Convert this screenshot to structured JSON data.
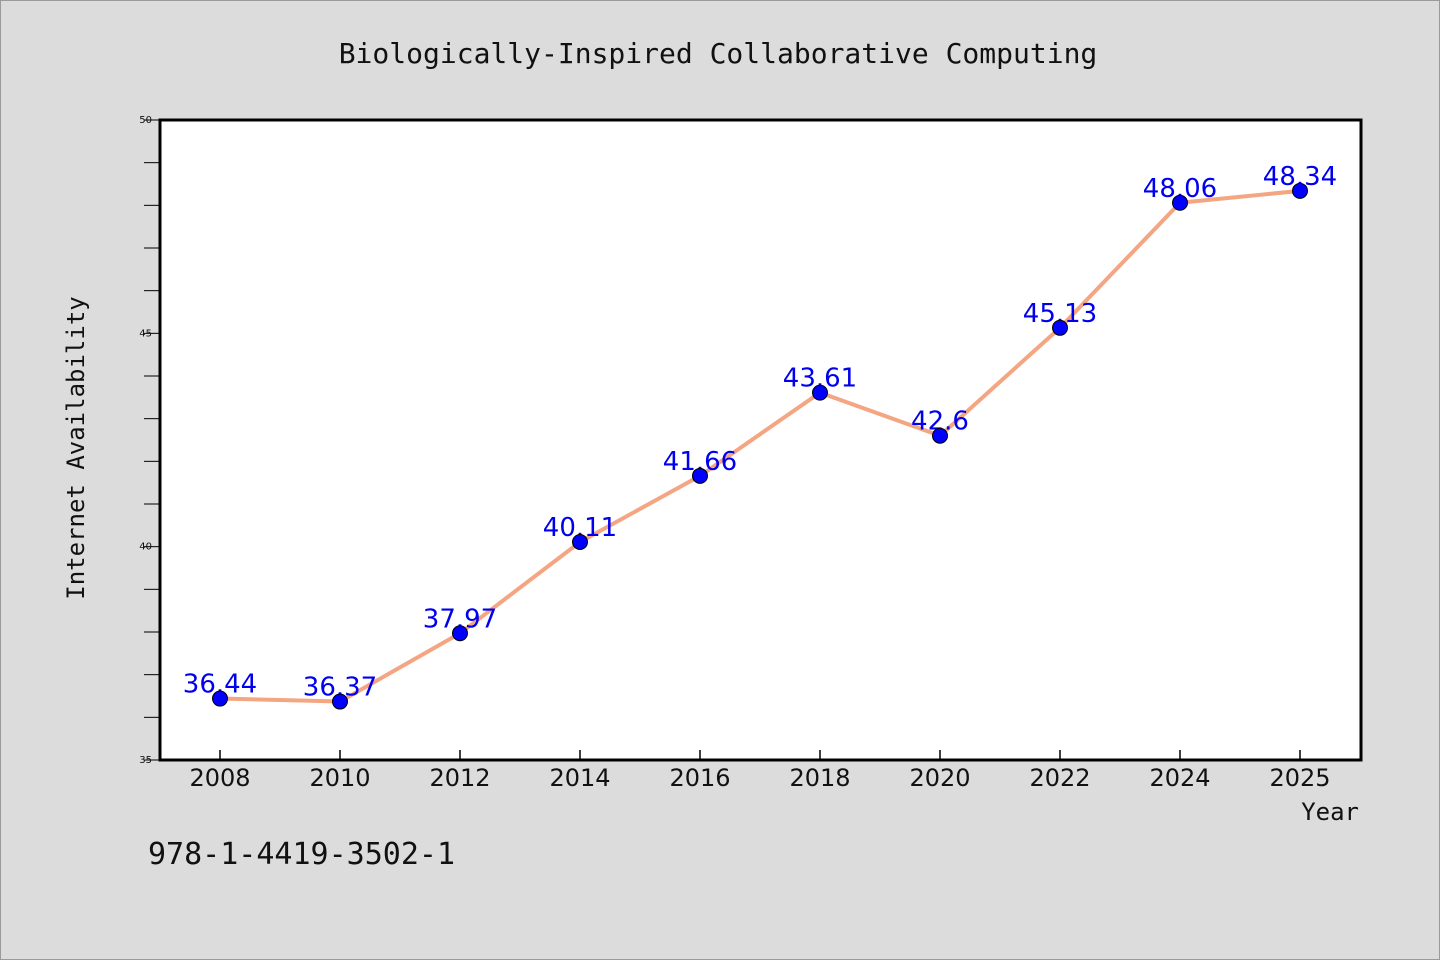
{
  "isbn": "978-1-4419-3502-1",
  "chart_data": {
    "type": "line",
    "title": "Biologically-Inspired Collaborative Computing",
    "xlabel": "Year",
    "ylabel": "Internet Availability",
    "categories": [
      "2008",
      "2010",
      "2012",
      "2014",
      "2016",
      "2018",
      "2020",
      "2022",
      "2024",
      "2025"
    ],
    "series": [
      {
        "values": [
          36.44,
          36.37,
          37.97,
          40.11,
          41.66,
          43.61,
          42.6,
          45.13,
          48.06,
          48.34
        ],
        "data_labels": [
          "36.44",
          "36.37",
          "37.97",
          "40.11",
          "41.66",
          "43.61",
          "42.6",
          "45.13",
          "48.06",
          "48.34"
        ],
        "line_color": "#f4a582",
        "marker_color": "#0000ff"
      }
    ],
    "ylim": [
      35,
      50
    ],
    "yticks": [
      "35",
      "40",
      "45",
      "50"
    ],
    "grid": false,
    "legend": "none",
    "colors": {
      "background": "#dcdcdc",
      "plot_area": "#ffffff",
      "label_text": "#0000ee"
    }
  }
}
